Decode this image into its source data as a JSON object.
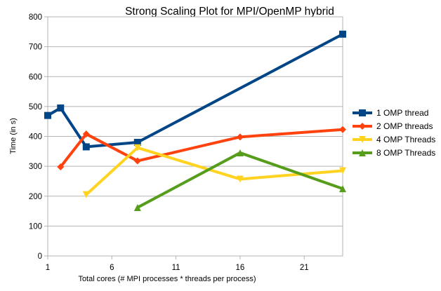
{
  "chart_data": {
    "type": "line",
    "title": "Strong Scaling Plot for MPI/OpenMP hybrid",
    "xlabel": "Total cores (# MPI processes * threads per process)",
    "ylabel": "Time (in s)",
    "xlim": [
      1,
      24
    ],
    "ylim": [
      0,
      800
    ],
    "x_ticks": [
      1,
      6,
      11,
      16,
      21
    ],
    "y_ticks": [
      0,
      100,
      200,
      300,
      400,
      500,
      600,
      700,
      800
    ],
    "grid": "horizontal major",
    "legend_position": "right",
    "series": [
      {
        "name": "1 OMP thread",
        "color": "#004586",
        "marker": "square",
        "points": [
          [
            1,
            470
          ],
          [
            2,
            495
          ],
          [
            4,
            365
          ],
          [
            8,
            380
          ],
          [
            24,
            742
          ]
        ]
      },
      {
        "name": "2 OMP threads",
        "color": "#ff420e",
        "marker": "diamond",
        "points": [
          [
            2,
            298
          ],
          [
            4,
            408
          ],
          [
            8,
            318
          ],
          [
            16,
            398
          ],
          [
            24,
            423
          ]
        ]
      },
      {
        "name": "4 OMP Threads",
        "color": "#ffd320",
        "marker": "triangle-down",
        "points": [
          [
            4,
            205
          ],
          [
            8,
            362
          ],
          [
            16,
            257
          ],
          [
            24,
            285
          ]
        ]
      },
      {
        "name": "8 OMP Threads",
        "color": "#579d1c",
        "marker": "triangle-up",
        "points": [
          [
            8,
            162
          ],
          [
            16,
            345
          ],
          [
            24,
            225
          ]
        ]
      }
    ]
  }
}
